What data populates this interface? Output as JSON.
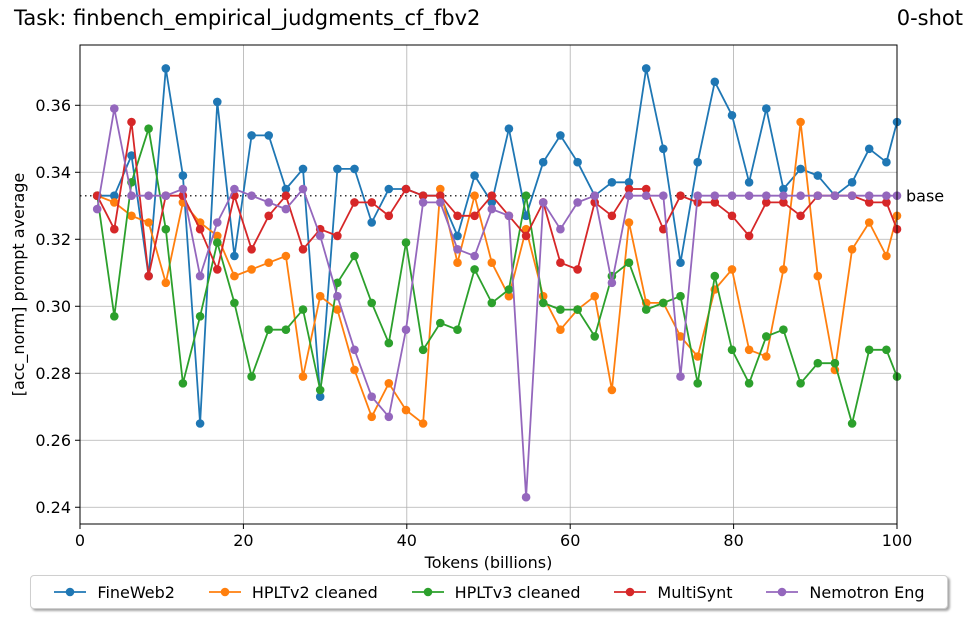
{
  "header": {
    "task_title": "Task: finbench_empirical_judgments_cf_fbv2",
    "shot_label": "0-shot"
  },
  "chart_data": {
    "type": "line",
    "xlabel": "Tokens (billions)",
    "ylabel": "[acc_norm] prompt average",
    "xlim": [
      0,
      100
    ],
    "ylim": [
      0.235,
      0.378
    ],
    "xticks": [
      0,
      20,
      40,
      60,
      80,
      100
    ],
    "yticks": [
      0.24,
      0.26,
      0.28,
      0.3,
      0.32,
      0.34,
      0.36
    ],
    "grid": true,
    "legend_placement": "bottom-center",
    "baseline": {
      "label": "base",
      "value": 0.333
    },
    "x": [
      2.1,
      4.2,
      6.3,
      8.4,
      10.5,
      12.6,
      14.7,
      16.8,
      18.9,
      21.0,
      23.1,
      25.2,
      27.3,
      29.4,
      31.5,
      33.6,
      35.7,
      37.8,
      39.9,
      42.0,
      44.1,
      46.2,
      48.3,
      50.4,
      52.5,
      54.6,
      56.7,
      58.8,
      60.9,
      63.0,
      65.1,
      67.2,
      69.3,
      71.4,
      73.5,
      75.6,
      77.7,
      79.8,
      81.9,
      84.0,
      86.1,
      88.2,
      90.3,
      92.4,
      94.5,
      96.6,
      98.7,
      100.0
    ],
    "series": [
      {
        "name": "FineWeb2",
        "color": "#1f77b4",
        "values": [
          0.333,
          0.333,
          0.345,
          0.309,
          0.371,
          0.339,
          0.265,
          0.361,
          0.315,
          0.351,
          0.351,
          0.335,
          0.341,
          0.273,
          0.341,
          0.341,
          0.325,
          0.335,
          0.335,
          0.333,
          0.333,
          0.321,
          0.339,
          0.331,
          0.353,
          0.327,
          0.343,
          0.351,
          0.343,
          0.333,
          0.337,
          0.337,
          0.371,
          0.347,
          0.313,
          0.343,
          0.367,
          0.357,
          0.337,
          0.359,
          0.335,
          0.341,
          0.339,
          0.333,
          0.337,
          0.347,
          0.343,
          0.355
        ]
      },
      {
        "name": "HPLTv2 cleaned",
        "color": "#ff7f0e",
        "values": [
          0.333,
          0.331,
          0.327,
          0.325,
          0.307,
          0.331,
          0.325,
          0.321,
          0.309,
          0.311,
          0.313,
          0.315,
          0.279,
          0.303,
          0.299,
          0.281,
          0.267,
          0.277,
          0.269,
          0.265,
          0.335,
          0.313,
          0.333,
          0.313,
          0.303,
          0.323,
          0.303,
          0.293,
          0.299,
          0.303,
          0.275,
          0.325,
          0.301,
          0.301,
          0.291,
          0.285,
          0.305,
          0.311,
          0.287,
          0.285,
          0.311,
          0.355,
          0.309,
          0.281,
          0.317,
          0.325,
          0.315,
          0.327
        ]
      },
      {
        "name": "HPLTv3 cleaned",
        "color": "#2ca02c",
        "values": [
          0.333,
          0.297,
          0.337,
          0.353,
          0.323,
          0.277,
          0.297,
          0.319,
          0.301,
          0.279,
          0.293,
          0.293,
          0.299,
          0.275,
          0.307,
          0.315,
          0.301,
          0.289,
          0.319,
          0.287,
          0.295,
          0.293,
          0.311,
          0.301,
          0.305,
          0.333,
          0.301,
          0.299,
          0.299,
          0.291,
          0.309,
          0.313,
          0.299,
          0.301,
          0.303,
          0.277,
          0.309,
          0.287,
          0.277,
          0.291,
          0.293,
          0.277,
          0.283,
          0.283,
          0.265,
          0.287,
          0.287,
          0.279
        ]
      },
      {
        "name": "MultiSynt",
        "color": "#d62728",
        "values": [
          0.333,
          0.323,
          0.355,
          0.309,
          0.333,
          0.333,
          0.323,
          0.311,
          0.333,
          0.317,
          0.327,
          0.333,
          0.317,
          0.323,
          0.321,
          0.331,
          0.331,
          0.327,
          0.335,
          0.333,
          0.333,
          0.327,
          0.327,
          0.333,
          0.327,
          0.321,
          0.331,
          0.313,
          0.311,
          0.331,
          0.327,
          0.335,
          0.335,
          0.323,
          0.333,
          0.331,
          0.331,
          0.327,
          0.321,
          0.331,
          0.331,
          0.327,
          0.333,
          0.333,
          0.333,
          0.331,
          0.331,
          0.323
        ]
      },
      {
        "name": "Nemotron Eng",
        "color": "#9467bd",
        "values": [
          0.329,
          0.359,
          0.333,
          0.333,
          0.333,
          0.335,
          0.309,
          0.325,
          0.335,
          0.333,
          0.331,
          0.329,
          0.335,
          0.321,
          0.303,
          0.287,
          0.273,
          0.267,
          0.293,
          0.331,
          0.331,
          0.317,
          0.315,
          0.329,
          0.327,
          0.243,
          0.331,
          0.323,
          0.331,
          0.333,
          0.307,
          0.333,
          0.333,
          0.333,
          0.279,
          0.333,
          0.333,
          0.333,
          0.333,
          0.333,
          0.333,
          0.333,
          0.333,
          0.333,
          0.333,
          0.333,
          0.333,
          0.333
        ]
      }
    ]
  }
}
